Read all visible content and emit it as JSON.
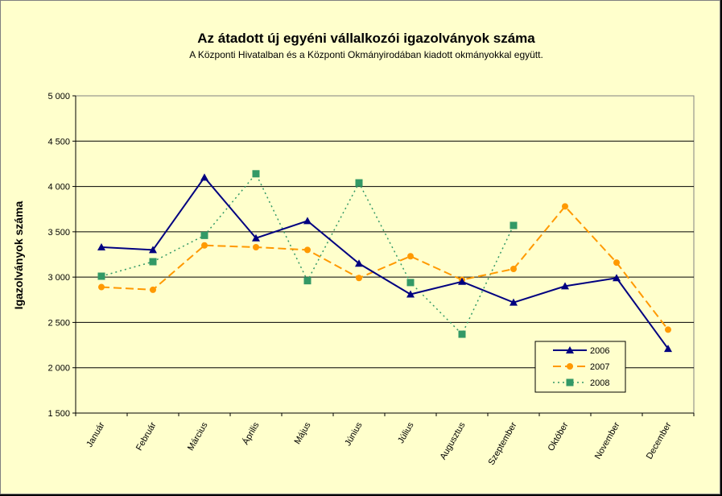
{
  "chart_data": {
    "type": "line",
    "title": "Az átadott új egyéni vállalkozói  igazolványok száma",
    "subtitle": "A Központi Hivatalban és a Központi Okmányirodában kiadott okmányokkal együtt.",
    "xlabel": "",
    "ylabel": "Igazolványok száma",
    "categories": [
      "Január",
      "Február",
      "Március",
      "Április",
      "Május",
      "Június",
      "Július",
      "Augusztus",
      "Szeptember",
      "Október",
      "November",
      "December"
    ],
    "ylim": [
      1500,
      5000
    ],
    "yticks": [
      1500,
      2000,
      2500,
      3000,
      3500,
      4000,
      4500,
      5000
    ],
    "ytick_labels": [
      "1 500",
      "2 000",
      "2 500",
      "3 000",
      "3 500",
      "4 000",
      "4 500",
      "5 000"
    ],
    "grid": true,
    "legend_position": "bottom-right",
    "series": [
      {
        "name": "2006",
        "color": "#000080",
        "marker": "triangle",
        "dash": "solid",
        "values": [
          3330,
          3300,
          4100,
          3430,
          3620,
          3150,
          2810,
          2950,
          2720,
          2900,
          2990,
          2210
        ]
      },
      {
        "name": "2007",
        "color": "#FF9900",
        "marker": "circle",
        "dash": "long-dash",
        "values": [
          2890,
          2860,
          3350,
          3330,
          3300,
          2990,
          3230,
          2970,
          3090,
          3780,
          3160,
          2420
        ]
      },
      {
        "name": "2008",
        "color": "#339966",
        "marker": "square",
        "dash": "dotted",
        "values": [
          3010,
          3170,
          3460,
          4140,
          2960,
          4040,
          2940,
          2370,
          3570,
          null,
          null,
          null
        ]
      }
    ]
  }
}
